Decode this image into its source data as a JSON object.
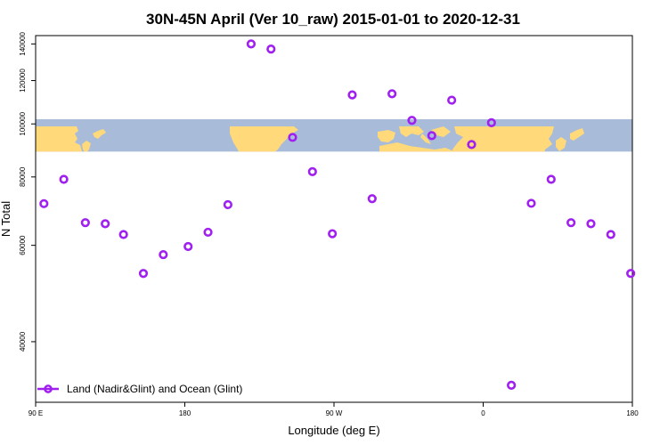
{
  "chart_data": {
    "type": "scatter",
    "title": "30N-45N April (Ver 10_raw)   2015-01-01 to 2020-12-31",
    "xlabel": "Longitude (deg E)",
    "ylabel": "N Total",
    "xlim": [
      90,
      450
    ],
    "ylim": [
      31000,
      145000
    ],
    "y_scale": "log",
    "x_ticks": [
      {
        "value": 90,
        "label": "90 E"
      },
      {
        "value": 180,
        "label": "180"
      },
      {
        "value": 270,
        "label": "90 W"
      },
      {
        "value": 360,
        "label": "0"
      },
      {
        "value": 450,
        "label": "180"
      }
    ],
    "y_ticks": [
      {
        "value": 40000,
        "label": "40000"
      },
      {
        "value": 60000,
        "label": "60000"
      },
      {
        "value": 80000,
        "label": "80000"
      },
      {
        "value": 100000,
        "label": "100000"
      },
      {
        "value": 120000,
        "label": "120000"
      },
      {
        "value": 140000,
        "label": "140000"
      }
    ],
    "map_band": {
      "lat_range": "30N-45N",
      "y_range": [
        89000,
        102000
      ],
      "ocean_color": "#a8bcd9",
      "land_color": "#ffd97a"
    },
    "series": [
      {
        "name": "Land (Nadir&Glint) and Ocean (Glint)",
        "color": "#a020f0",
        "x": [
          95,
          107,
          120,
          132,
          143,
          155,
          167,
          182,
          194,
          206,
          220,
          232,
          245,
          257,
          269,
          281,
          293,
          305,
          317,
          329,
          341,
          353,
          365,
          377,
          389,
          401,
          413,
          425,
          437,
          449
        ],
        "y": [
          71500,
          79200,
          66000,
          65700,
          62800,
          53300,
          57700,
          59700,
          63400,
          71200,
          140000,
          137000,
          94500,
          81800,
          63000,
          113000,
          73000,
          113500,
          101500,
          95200,
          110500,
          91700,
          100500,
          33300,
          71600,
          79200,
          66000,
          65700,
          62800,
          53300
        ]
      }
    ],
    "legend": {
      "position": "bottom-left",
      "entries": [
        "Land (Nadir&Glint) and Ocean (Glint)"
      ]
    }
  }
}
